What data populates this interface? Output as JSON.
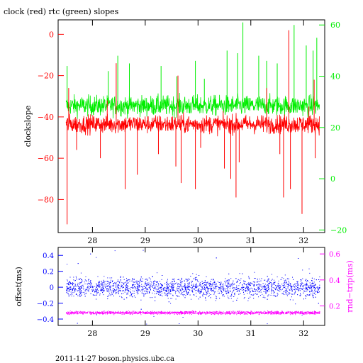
{
  "title": "clock (red) rtc (green) slopes",
  "footer": "2011-11-27 boson.physics.ubc.ca",
  "colors": {
    "clock": "#ff0000",
    "rtc": "#00ee00",
    "offset": "#0000ff",
    "rndtrip": "#ff00ff",
    "axis": "#000000"
  },
  "chart_data": [
    {
      "type": "line",
      "title": "clock (red) rtc (green) slopes",
      "ylabel": "clockslope",
      "y2label": "",
      "xlim": [
        27.35,
        32.4
      ],
      "ylim": [
        -96,
        7
      ],
      "y2lim": [
        -21,
        62
      ],
      "xticks": [
        28,
        29,
        30,
        31,
        32
      ],
      "yticks": [
        0,
        -20,
        -40,
        -60,
        -80
      ],
      "y2ticks": [
        60,
        40,
        20,
        0,
        -20
      ],
      "series": [
        {
          "name": "clock",
          "axis": "left",
          "baseline": -43.5,
          "noise": 4,
          "spikes": [
            {
              "x": 27.52,
              "y": -92
            },
            {
              "x": 27.55,
              "y": -26
            },
            {
              "x": 27.7,
              "y": -56
            },
            {
              "x": 28.15,
              "y": -60
            },
            {
              "x": 28.28,
              "y": -32
            },
            {
              "x": 28.45,
              "y": -14
            },
            {
              "x": 28.62,
              "y": -75
            },
            {
              "x": 28.85,
              "y": -68
            },
            {
              "x": 29.25,
              "y": -58
            },
            {
              "x": 29.58,
              "y": -64
            },
            {
              "x": 29.62,
              "y": -20
            },
            {
              "x": 29.68,
              "y": -72
            },
            {
              "x": 29.95,
              "y": -75
            },
            {
              "x": 30.05,
              "y": -55
            },
            {
              "x": 30.5,
              "y": -65
            },
            {
              "x": 30.62,
              "y": -70
            },
            {
              "x": 30.72,
              "y": -79
            },
            {
              "x": 30.78,
              "y": -62
            },
            {
              "x": 31.3,
              "y": -26
            },
            {
              "x": 31.55,
              "y": -58
            },
            {
              "x": 31.62,
              "y": -79
            },
            {
              "x": 31.72,
              "y": 2
            },
            {
              "x": 31.75,
              "y": -75
            },
            {
              "x": 31.97,
              "y": -87
            },
            {
              "x": 32.1,
              "y": -35
            },
            {
              "x": 32.2,
              "y": -22
            },
            {
              "x": 32.22,
              "y": -60
            }
          ]
        },
        {
          "name": "rtc",
          "axis": "right",
          "baseline": 28.5,
          "noise": 3.5,
          "spikes": [
            {
              "x": 27.52,
              "y": 44
            },
            {
              "x": 28.3,
              "y": 42
            },
            {
              "x": 28.48,
              "y": 48
            },
            {
              "x": 28.7,
              "y": 45
            },
            {
              "x": 29.3,
              "y": 44
            },
            {
              "x": 29.6,
              "y": 40
            },
            {
              "x": 29.95,
              "y": 46
            },
            {
              "x": 30.12,
              "y": 39
            },
            {
              "x": 30.55,
              "y": 50
            },
            {
              "x": 30.75,
              "y": 49
            },
            {
              "x": 30.85,
              "y": 61
            },
            {
              "x": 31.15,
              "y": 48
            },
            {
              "x": 31.3,
              "y": 46
            },
            {
              "x": 31.5,
              "y": 45
            },
            {
              "x": 31.82,
              "y": 60
            },
            {
              "x": 32.05,
              "y": 52
            },
            {
              "x": 32.18,
              "y": 50
            },
            {
              "x": 32.25,
              "y": 55
            }
          ]
        }
      ],
      "x_range": [
        27.5,
        32.3
      ]
    },
    {
      "type": "scatter",
      "xlabel": "",
      "ylabel": "offset(ms)",
      "y2label": "rnd−trip(ms)",
      "xlim": [
        27.35,
        32.4
      ],
      "ylim": [
        -0.48,
        0.5
      ],
      "y2lim": [
        0.05,
        0.65
      ],
      "xticks": [
        28,
        29,
        30,
        31,
        32
      ],
      "yticks": [
        0.4,
        0.2,
        0,
        -0.2,
        -0.4
      ],
      "y2ticks": [
        0.6,
        0.4,
        0.2
      ],
      "series": [
        {
          "name": "offset",
          "axis": "left",
          "center": 0.0,
          "spread": 0.09,
          "x_range": [
            27.5,
            32.3
          ]
        },
        {
          "name": "rnd-trip",
          "axis": "right",
          "center": 0.15,
          "spread": 0.008,
          "x_range": [
            27.5,
            32.3
          ]
        }
      ]
    }
  ]
}
